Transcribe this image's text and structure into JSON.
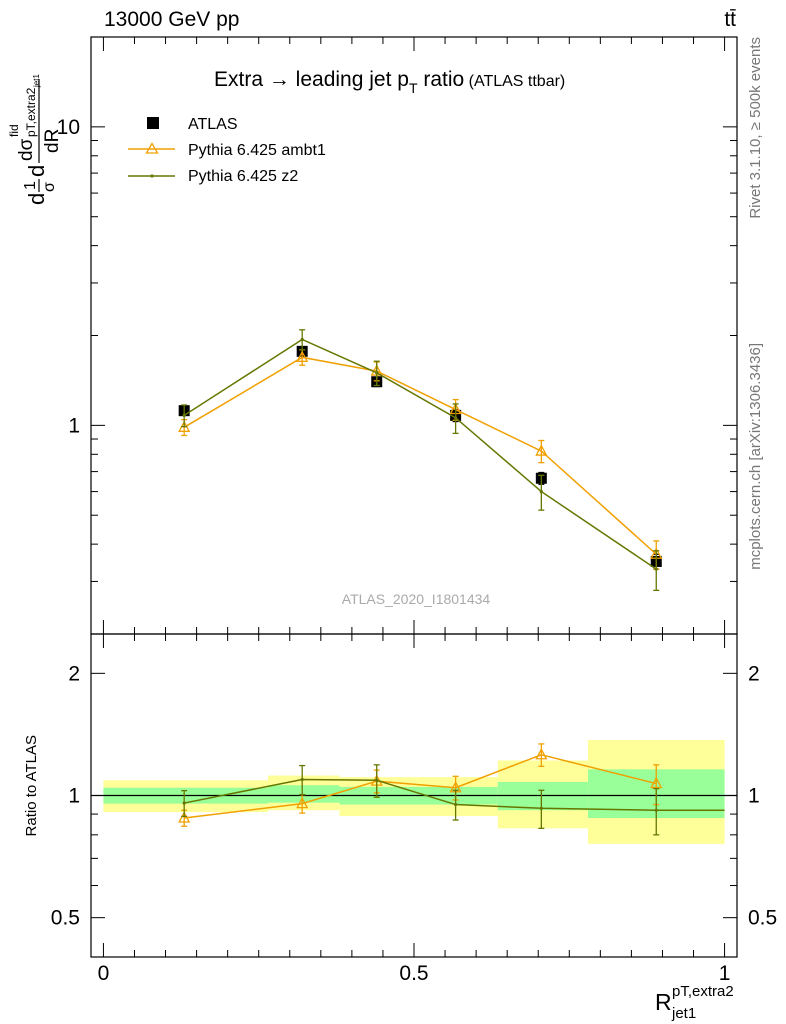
{
  "header": {
    "left": "13000 GeV pp",
    "right": "tt̄"
  },
  "side_labels": {
    "rivet": "Rivet 3.1.10, ≥ 500k events",
    "mcplots": "mcplots.cern.ch [arXiv:1306.3436]"
  },
  "analysis_id": "ATLAS_2020_I1801434",
  "main_title": {
    "text": "Extra → leading jet p",
    "sub": "T",
    "text_after": " ratio",
    "small": " (ATLAS ttbar)"
  },
  "y_axis_label": {
    "a": "d",
    "b": "1",
    "c": "σ",
    "d": "d",
    "num": "dσ",
    "num_sup": "fid",
    "num_sub": "pT,extra2",
    "num_subsub": "jet1",
    "den": "dR"
  },
  "ratio_ylabel": "Ratio to ATLAS",
  "x_axis_label": {
    "main": "R",
    "sup": "pT,extra2",
    "sub": "jet1"
  },
  "colors": {
    "atlas": "#000000",
    "ambt1": "#f0a000",
    "z2": "#667700",
    "band_inner": "#99ff99",
    "band_outer": "#ffff99"
  },
  "chart_data": [
    {
      "type": "line",
      "panel": "main",
      "title": "Extra → leading jet p_T ratio (ATLAS ttbar)",
      "y_scale": "log",
      "xlim": [
        -0.02,
        1.02
      ],
      "ylim": [
        0.2,
        20
      ],
      "y_ticks": [
        {
          "v": 1,
          "label": "1"
        },
        {
          "v": 10,
          "label": "10"
        }
      ],
      "legend_position": "top-left",
      "bins": [
        [
          0.0,
          0.265
        ],
        [
          0.265,
          0.38
        ],
        [
          0.38,
          0.635
        ],
        [
          0.635,
          0.78
        ],
        [
          0.78,
          1.0
        ]
      ],
      "series": [
        {
          "name": "ATLAS",
          "key": "atlas",
          "marker": "square",
          "x": [
            0.13,
            0.32,
            0.44,
            0.567,
            0.705,
            0.89
          ],
          "y": [
            1.12,
            1.77,
            1.4,
            1.08,
            0.665,
            0.35
          ],
          "err": [
            0.04,
            0.06,
            0.05,
            0.05,
            0.03,
            0.02
          ]
        },
        {
          "name": "Pythia 6.425 ambt1",
          "key": "ambt1",
          "marker": "triangle",
          "x": [
            0.13,
            0.32,
            0.44,
            0.567,
            0.705,
            0.89
          ],
          "y": [
            0.985,
            1.69,
            1.52,
            1.13,
            0.82,
            0.37
          ],
          "err": [
            0.06,
            0.1,
            0.11,
            0.09,
            0.07,
            0.04
          ]
        },
        {
          "name": "Pythia 6.425 z2",
          "key": "z2",
          "marker": "dot",
          "x": [
            0.13,
            0.32,
            0.44,
            0.567,
            0.705,
            0.89
          ],
          "y": [
            1.08,
            1.94,
            1.5,
            1.06,
            0.6,
            0.33
          ],
          "err": [
            0.09,
            0.15,
            0.14,
            0.12,
            0.08,
            0.05
          ]
        }
      ]
    },
    {
      "type": "line",
      "panel": "ratio",
      "ylabel": "Ratio to ATLAS",
      "y_scale": "log",
      "xlim": [
        -0.02,
        1.02
      ],
      "ylim": [
        0.4,
        2.5
      ],
      "x_ticks": [
        {
          "v": 0,
          "label": "0"
        },
        {
          "v": 0.5,
          "label": "0.5"
        },
        {
          "v": 1,
          "label": "1"
        }
      ],
      "y_ticks": [
        {
          "v": 0.5,
          "label": "0.5"
        },
        {
          "v": 1,
          "label": "1"
        },
        {
          "v": 2,
          "label": "2"
        }
      ],
      "bands": [
        {
          "x0": 0.0,
          "x1": 0.265,
          "inner": [
            0.955,
            1.045
          ],
          "outer": [
            0.91,
            1.09
          ]
        },
        {
          "x0": 0.265,
          "x1": 0.38,
          "inner": [
            0.96,
            1.06
          ],
          "outer": [
            0.92,
            1.12
          ]
        },
        {
          "x0": 0.38,
          "x1": 0.635,
          "inner": [
            0.95,
            1.05
          ],
          "outer": [
            0.89,
            1.11
          ]
        },
        {
          "x0": 0.635,
          "x1": 0.78,
          "inner": [
            0.92,
            1.08
          ],
          "outer": [
            0.83,
            1.22
          ]
        },
        {
          "x0": 0.78,
          "x1": 1.0,
          "inner": [
            0.88,
            1.16
          ],
          "outer": [
            0.76,
            1.37
          ]
        }
      ],
      "series": [
        {
          "name": "Pythia 6.425 ambt1",
          "key": "ambt1",
          "marker": "triangle",
          "x": [
            0.13,
            0.32,
            0.44,
            0.567,
            0.705,
            0.89
          ],
          "y": [
            0.88,
            0.955,
            1.085,
            1.045,
            1.26,
            1.07
          ],
          "err": [
            0.04,
            0.05,
            0.07,
            0.07,
            0.08,
            0.12
          ]
        },
        {
          "name": "Pythia 6.425 z2",
          "key": "z2",
          "marker": "dot",
          "x": [
            0.13,
            0.32,
            0.44,
            0.567,
            0.705,
            0.89,
            1.0
          ],
          "y": [
            0.958,
            1.095,
            1.09,
            0.95,
            0.93,
            0.92,
            0.92
          ],
          "err": [
            0.07,
            0.09,
            0.1,
            0.08,
            0.1,
            0.12,
            0
          ]
        }
      ]
    }
  ]
}
